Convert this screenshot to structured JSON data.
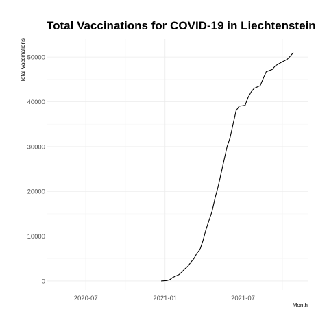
{
  "chart_data": {
    "type": "line",
    "title": "Total Vaccinations for COVID-19 in Liechtenstein",
    "xlabel": "Month",
    "ylabel": "Total Vaccinations",
    "x_ticks": [
      {
        "value": "2020-07-01",
        "label": "2020-07"
      },
      {
        "value": "2021-01-01",
        "label": "2021-01"
      },
      {
        "value": "2021-07-01",
        "label": "2021-07"
      }
    ],
    "y_ticks": [
      0,
      10000,
      20000,
      30000,
      40000,
      50000
    ],
    "xlim": [
      "2020-04-01",
      "2021-11-30"
    ],
    "ylim": [
      -2000,
      54000
    ],
    "grid": true,
    "legend": "none",
    "series": [
      {
        "color": "#000000",
        "points": [
          [
            "2020-12-23",
            0
          ],
          [
            "2021-01-05",
            100
          ],
          [
            "2021-01-12",
            300
          ],
          [
            "2021-01-19",
            800
          ],
          [
            "2021-01-26",
            1100
          ],
          [
            "2021-02-02",
            1400
          ],
          [
            "2021-02-09",
            2000
          ],
          [
            "2021-02-16",
            2700
          ],
          [
            "2021-02-23",
            3300
          ],
          [
            "2021-03-02",
            4200
          ],
          [
            "2021-03-09",
            5000
          ],
          [
            "2021-03-16",
            6200
          ],
          [
            "2021-03-23",
            7000
          ],
          [
            "2021-03-30",
            9000
          ],
          [
            "2021-04-06",
            11500
          ],
          [
            "2021-04-13",
            13500
          ],
          [
            "2021-04-20",
            15500
          ],
          [
            "2021-04-27",
            18500
          ],
          [
            "2021-05-04",
            21000
          ],
          [
            "2021-05-11",
            24000
          ],
          [
            "2021-05-18",
            27000
          ],
          [
            "2021-05-25",
            30000
          ],
          [
            "2021-06-01",
            32000
          ],
          [
            "2021-06-08",
            35000
          ],
          [
            "2021-06-15",
            38000
          ],
          [
            "2021-06-22",
            39000
          ],
          [
            "2021-07-06",
            39200
          ],
          [
            "2021-07-13",
            41000
          ],
          [
            "2021-07-20",
            42200
          ],
          [
            "2021-07-27",
            43000
          ],
          [
            "2021-08-10",
            43600
          ],
          [
            "2021-08-17",
            45200
          ],
          [
            "2021-08-24",
            46700
          ],
          [
            "2021-09-07",
            47200
          ],
          [
            "2021-09-14",
            48000
          ],
          [
            "2021-09-28",
            48800
          ],
          [
            "2021-10-12",
            49500
          ],
          [
            "2021-10-19",
            50200
          ],
          [
            "2021-10-26",
            51000
          ]
        ]
      }
    ]
  }
}
